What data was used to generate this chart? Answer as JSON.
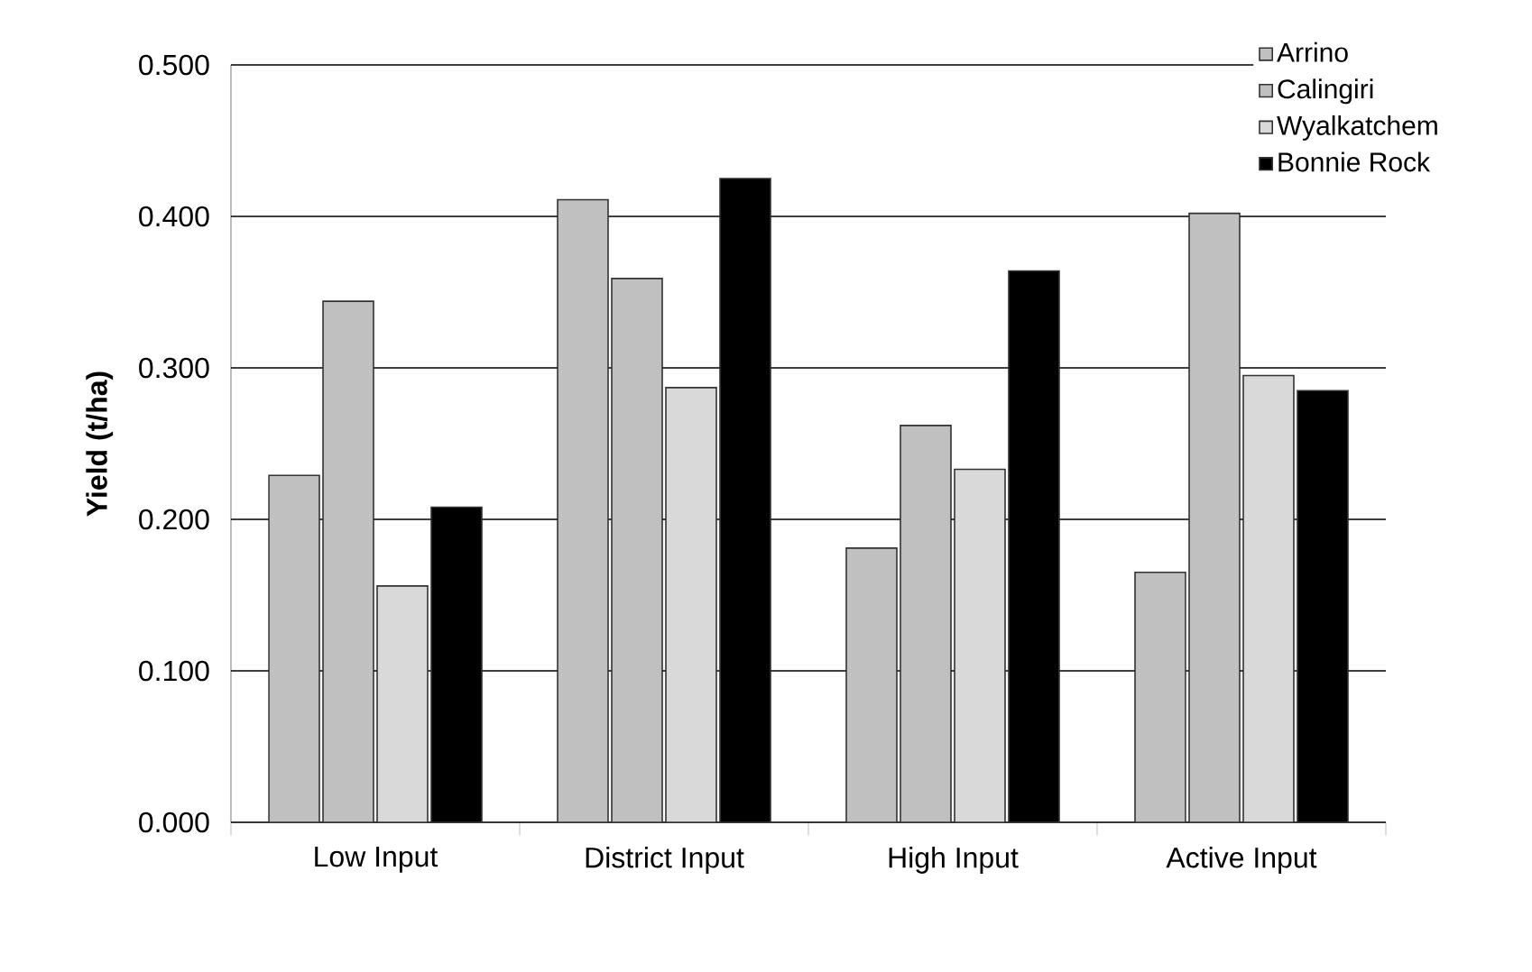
{
  "chart_data": {
    "type": "bar",
    "ylabel": "Yield (t/ha)",
    "categories": [
      "Low Input",
      "District Input",
      "High Input",
      "Active Input"
    ],
    "series": [
      {
        "name": "Arrino",
        "color": "#c0c0c0",
        "values": [
          0.229,
          0.411,
          0.181,
          0.165
        ]
      },
      {
        "name": "Calingiri",
        "color": "#c0c0c0",
        "values": [
          0.344,
          0.359,
          0.262,
          0.402
        ]
      },
      {
        "name": "Wyalkatchem",
        "color": "#d9d9d9",
        "values": [
          0.156,
          0.287,
          0.233,
          0.295
        ]
      },
      {
        "name": "Bonnie Rock",
        "color": "#000000",
        "values": [
          0.208,
          0.425,
          0.364,
          0.285
        ]
      }
    ],
    "ylim": [
      0,
      0.5
    ],
    "yticks": [
      {
        "value": 0,
        "label": "0.000"
      },
      {
        "value": 0.1,
        "label": "0.100"
      },
      {
        "value": 0.2,
        "label": "0.200"
      },
      {
        "value": 0.3,
        "label": "0.300"
      },
      {
        "value": 0.4,
        "label": "0.400"
      },
      {
        "value": 0.5,
        "label": "0.500"
      }
    ],
    "grid": "y",
    "legend": "top right"
  }
}
